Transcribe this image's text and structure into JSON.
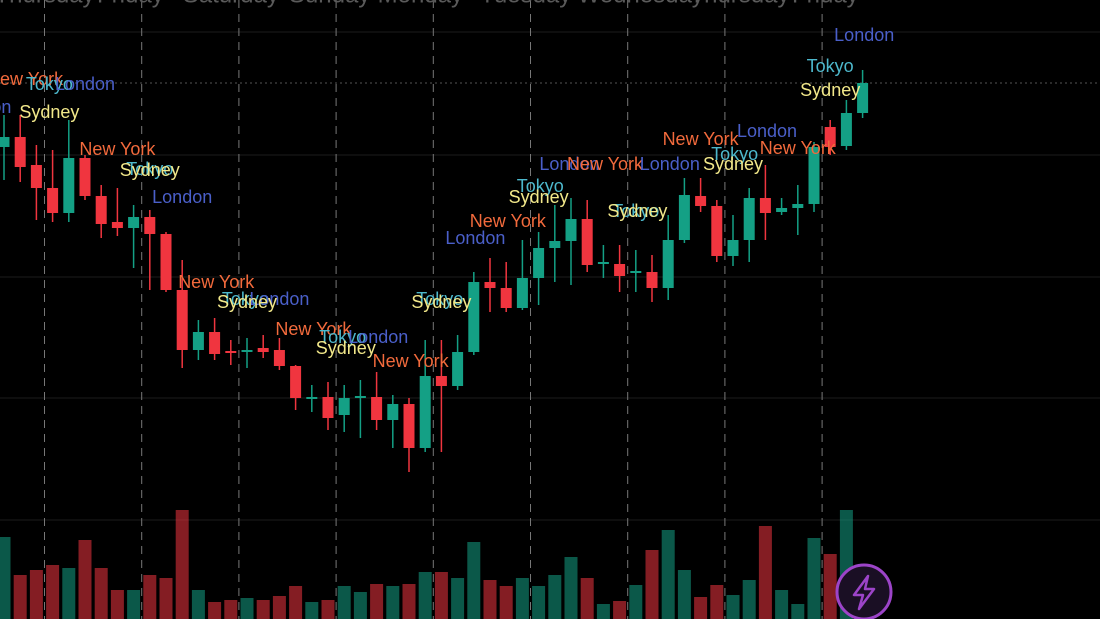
{
  "chart_data": {
    "type": "candlestick",
    "ylim": [
      0,
      500
    ],
    "grid_levels": [
      468,
      345,
      223,
      102
    ],
    "last_price_line": 417,
    "up_color": "#14a085",
    "down_color": "#f0353f",
    "open": [
      353,
      363,
      335,
      312,
      287,
      342,
      304,
      278,
      272,
      283,
      266,
      210,
      150,
      168,
      149,
      148,
      152,
      150,
      134,
      101,
      103,
      85,
      102,
      103,
      80,
      96,
      52,
      124,
      114,
      148,
      218,
      212,
      192,
      222,
      252,
      259,
      281,
      237,
      236,
      227,
      228,
      212,
      260,
      304,
      294,
      244,
      260,
      302,
      288,
      292,
      296,
      373,
      354,
      387
    ],
    "high": [
      385,
      385,
      355,
      350,
      380,
      345,
      315,
      312,
      295,
      290,
      268,
      240,
      180,
      182,
      160,
      162,
      165,
      162,
      135,
      115,
      118,
      115,
      120,
      128,
      105,
      102,
      160,
      160,
      165,
      228,
      242,
      238,
      260,
      268,
      295,
      302,
      300,
      255,
      255,
      250,
      245,
      285,
      322,
      322,
      300,
      285,
      312,
      335,
      302,
      315,
      358,
      380,
      400,
      430
    ],
    "low": [
      320,
      318,
      280,
      278,
      278,
      300,
      262,
      264,
      232,
      210,
      208,
      132,
      140,
      140,
      135,
      132,
      142,
      130,
      90,
      88,
      70,
      68,
      62,
      70,
      52,
      28,
      48,
      48,
      110,
      145,
      188,
      188,
      190,
      195,
      218,
      215,
      228,
      222,
      208,
      208,
      198,
      200,
      257,
      288,
      238,
      234,
      238,
      260,
      285,
      265,
      288,
      345,
      350,
      382
    ],
    "close": [
      363,
      333,
      312,
      287,
      342,
      304,
      276,
      272,
      283,
      266,
      210,
      150,
      168,
      146,
      148,
      150,
      148,
      134,
      102,
      103,
      82,
      102,
      104,
      80,
      96,
      52,
      124,
      114,
      148,
      218,
      212,
      192,
      222,
      252,
      259,
      281,
      235,
      238,
      224,
      229,
      212,
      260,
      305,
      294,
      244,
      260,
      302,
      287,
      292,
      296,
      353,
      353,
      387,
      417
    ],
    "volume": [
      82,
      44,
      49,
      54,
      51,
      79,
      51,
      29,
      29,
      44,
      41,
      109,
      29,
      17,
      19,
      21,
      19,
      23,
      33,
      17,
      19,
      33,
      27,
      35,
      33,
      35,
      47,
      47,
      41,
      77,
      39,
      33,
      41,
      33,
      44,
      62,
      41,
      15,
      18,
      34,
      69,
      89,
      49,
      22,
      34,
      24,
      39,
      93,
      29,
      15,
      81,
      65,
      109,
      null
    ],
    "volume_lim": [
      0,
      120
    ],
    "day_starts": [
      2,
      8,
      14,
      20,
      26,
      32,
      38,
      44,
      50
    ],
    "day_labels": [
      {
        "text": "Thursday",
        "x": 2.5
      },
      {
        "text": "Friday",
        "x": 7.8
      },
      {
        "text": "Saturday",
        "x": 14
      },
      {
        "text": "Sunday",
        "x": 20.1
      },
      {
        "text": "Monday",
        "x": 25.7
      },
      {
        "text": "Tuesday",
        "x": 32.2
      },
      {
        "text": "Wednesday",
        "x": 39.3
      },
      {
        "text": "Thursday",
        "x": 45.4
      },
      {
        "text": "Friday",
        "x": 50.7
      }
    ],
    "session_colors": {
      "New York": "#f26a3c",
      "Tokyo": "#4db8cc",
      "London": "#4a5fc9",
      "Sydney": "#f2e88a"
    },
    "annotations": [
      {
        "text": "London",
        "x": -1.4,
        "y": 392
      },
      {
        "text": "New York",
        "x": 1.3,
        "y": 420
      },
      {
        "text": "Tokyo",
        "x": 2.8,
        "y": 415
      },
      {
        "text": "London",
        "x": 5.0,
        "y": 415
      },
      {
        "text": "Sydney",
        "x": 2.8,
        "y": 387
      },
      {
        "text": "New York",
        "x": 7.0,
        "y": 350
      },
      {
        "text": "Tokyo",
        "x": 9.0,
        "y": 330
      },
      {
        "text": "Sydney",
        "x": 9.0,
        "y": 329
      },
      {
        "text": "London",
        "x": 11.0,
        "y": 302
      },
      {
        "text": "New York",
        "x": 13.1,
        "y": 217
      },
      {
        "text": "Tokyo",
        "x": 14.9,
        "y": 200
      },
      {
        "text": "London",
        "x": 17.0,
        "y": 200
      },
      {
        "text": "Sydney",
        "x": 15.0,
        "y": 197
      },
      {
        "text": "New York",
        "x": 19.1,
        "y": 170
      },
      {
        "text": "Tokyo",
        "x": 20.9,
        "y": 162
      },
      {
        "text": "London",
        "x": 23.1,
        "y": 162
      },
      {
        "text": "Sydney",
        "x": 21.1,
        "y": 151
      },
      {
        "text": "New York",
        "x": 25.1,
        "y": 138
      },
      {
        "text": "Tokyo",
        "x": 26.9,
        "y": 200
      },
      {
        "text": "Sydney",
        "x": 27.0,
        "y": 197
      },
      {
        "text": "London",
        "x": 29.1,
        "y": 261
      },
      {
        "text": "New York",
        "x": 31.1,
        "y": 278
      },
      {
        "text": "Tokyo",
        "x": 33.1,
        "y": 313
      },
      {
        "text": "Sydney",
        "x": 33.0,
        "y": 302
      },
      {
        "text": "London",
        "x": 34.9,
        "y": 335
      },
      {
        "text": "New York",
        "x": 37.1,
        "y": 335
      },
      {
        "text": "London",
        "x": 41.1,
        "y": 335
      },
      {
        "text": "Tokyo",
        "x": 39.0,
        "y": 288
      },
      {
        "text": "Sydney",
        "x": 39.1,
        "y": 288
      },
      {
        "text": "New York",
        "x": 43.0,
        "y": 360
      },
      {
        "text": "London",
        "x": 47.1,
        "y": 368
      },
      {
        "text": "Tokyo",
        "x": 45.1,
        "y": 345
      },
      {
        "text": "Sydney",
        "x": 45.0,
        "y": 335
      },
      {
        "text": "New York",
        "x": 49.0,
        "y": 351
      },
      {
        "text": "Tokyo",
        "x": 51.0,
        "y": 433
      },
      {
        "text": "Sydney",
        "x": 51.0,
        "y": 409
      },
      {
        "text": "London",
        "x": 53.1,
        "y": 464
      }
    ]
  }
}
